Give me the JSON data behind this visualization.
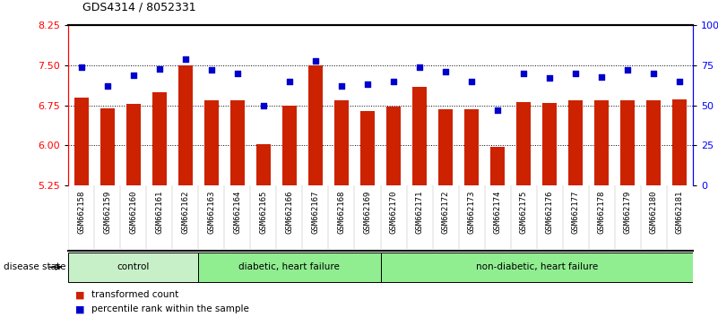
{
  "title": "GDS4314 / 8052331",
  "samples": [
    "GSM662158",
    "GSM662159",
    "GSM662160",
    "GSM662161",
    "GSM662162",
    "GSM662163",
    "GSM662164",
    "GSM662165",
    "GSM662166",
    "GSM662167",
    "GSM662168",
    "GSM662169",
    "GSM662170",
    "GSM662171",
    "GSM662172",
    "GSM662173",
    "GSM662174",
    "GSM662175",
    "GSM662176",
    "GSM662177",
    "GSM662178",
    "GSM662179",
    "GSM662180",
    "GSM662181"
  ],
  "bar_values": [
    6.9,
    6.7,
    6.78,
    7.0,
    7.5,
    6.85,
    6.85,
    6.03,
    6.75,
    7.5,
    6.85,
    6.65,
    6.72,
    7.1,
    6.68,
    6.68,
    5.97,
    6.82,
    6.8,
    6.85,
    6.85,
    6.85,
    6.85,
    6.87
  ],
  "blue_values": [
    74,
    62,
    69,
    73,
    79,
    72,
    70,
    50,
    65,
    78,
    62,
    63,
    65,
    74,
    71,
    65,
    47,
    70,
    67,
    70,
    68,
    72,
    70,
    65
  ],
  "group_configs": [
    {
      "label": "control",
      "start": 0,
      "end": 4,
      "color": "#c8f0c8"
    },
    {
      "label": "diabetic, heart failure",
      "start": 5,
      "end": 11,
      "color": "#90ee90"
    },
    {
      "label": "non-diabetic, heart failure",
      "start": 12,
      "end": 23,
      "color": "#90ee90"
    }
  ],
  "ylim_left": [
    5.25,
    8.25
  ],
  "ylim_right": [
    0,
    100
  ],
  "yticks_left": [
    5.25,
    6.0,
    6.75,
    7.5,
    8.25
  ],
  "yticks_right": [
    0,
    25,
    50,
    75,
    100
  ],
  "bar_color": "#cc2200",
  "dot_color": "#0000cc",
  "bg_color": "#ffffff",
  "plot_bg": "#ffffff",
  "xlabels_bg": "#d0d0d0",
  "legend_items": [
    "transformed count",
    "percentile rank within the sample"
  ]
}
